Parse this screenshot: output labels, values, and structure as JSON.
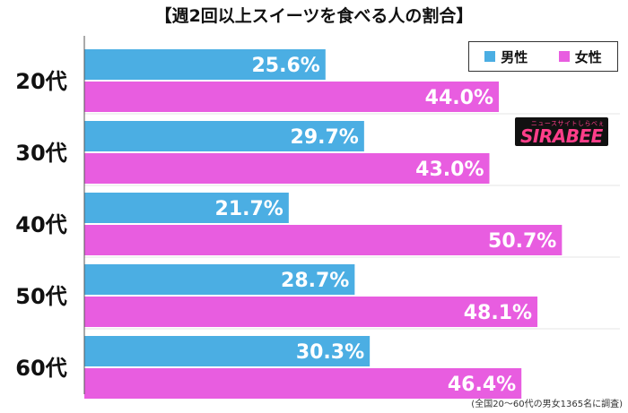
{
  "chart_data": {
    "type": "bar",
    "orientation": "horizontal",
    "title": "【週2回以上スイーツを食べる人の割合】",
    "categories": [
      "20代",
      "30代",
      "40代",
      "50代",
      "60代"
    ],
    "series": [
      {
        "name": "男性",
        "values": [
          25.6,
          29.7,
          21.7,
          28.7,
          30.3
        ],
        "labels": [
          "25.6%",
          "29.7%",
          "21.7%",
          "28.7%",
          "30.3%"
        ],
        "color": "#4baee3"
      },
      {
        "name": "女性",
        "values": [
          44.0,
          43.0,
          50.7,
          48.1,
          46.4
        ],
        "labels": [
          "44.0%",
          "43.0%",
          "50.7%",
          "48.1%",
          "46.4%"
        ],
        "color": "#e85de0"
      }
    ],
    "xlim": [
      0,
      55
    ],
    "legend_position": "top-right",
    "grid": false,
    "footnote": "(全国20〜60代の男女1365名に調査)"
  },
  "logo": {
    "main": "SIRABEE",
    "sub": "ニュースサイトしらべぇ"
  }
}
